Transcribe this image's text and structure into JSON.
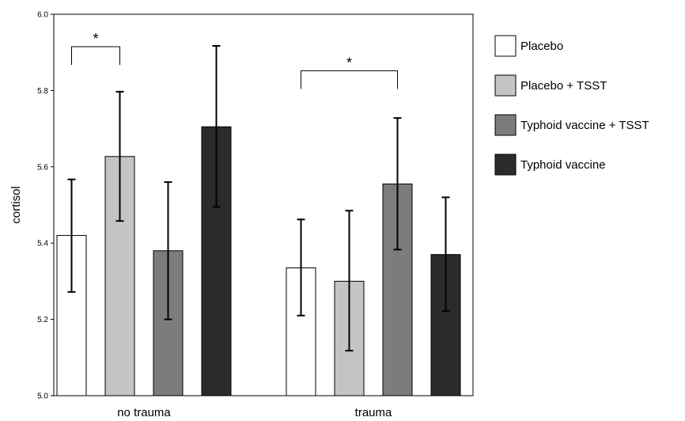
{
  "chart_data": {
    "type": "bar",
    "title": "",
    "xlabel": "",
    "ylabel": "cortisol",
    "ylim": [
      5.0,
      6.0
    ],
    "yticks": [
      "5.0",
      "5.2",
      "5.4",
      "5.6",
      "5.8",
      "6.0"
    ],
    "grid": false,
    "legend_position": "right",
    "categories": [
      "no trauma",
      "trauma"
    ],
    "series": [
      {
        "name": "Placebo",
        "color": "#ffffff",
        "values": [
          5.42,
          5.335
        ],
        "err_low": [
          5.272,
          5.21
        ],
        "err_high": [
          5.567,
          5.462
        ]
      },
      {
        "name": "Placebo + TSST",
        "color": "#c4c4c4",
        "values": [
          5.627,
          5.3
        ],
        "err_low": [
          5.458,
          5.118
        ],
        "err_high": [
          5.797,
          5.485
        ]
      },
      {
        "name": "Typhoid vaccine + TSST",
        "color": "#7c7c7c",
        "values": [
          5.38,
          5.555
        ],
        "err_low": [
          5.2,
          5.383
        ],
        "err_high": [
          5.56,
          5.728
        ]
      },
      {
        "name": "Typhoid vaccine",
        "color": "#2b2b2b",
        "values": [
          5.705,
          5.37
        ],
        "err_low": [
          5.495,
          5.222
        ],
        "err_high": [
          5.917,
          5.52
        ]
      }
    ],
    "annotations": [
      {
        "label": "*",
        "category": "no trauma",
        "from_series": 0,
        "to_series": 1,
        "bracket_y": 5.915
      },
      {
        "label": "*",
        "category": "trauma",
        "from_series": 0,
        "to_series": 2,
        "bracket_y": 5.852
      }
    ]
  }
}
